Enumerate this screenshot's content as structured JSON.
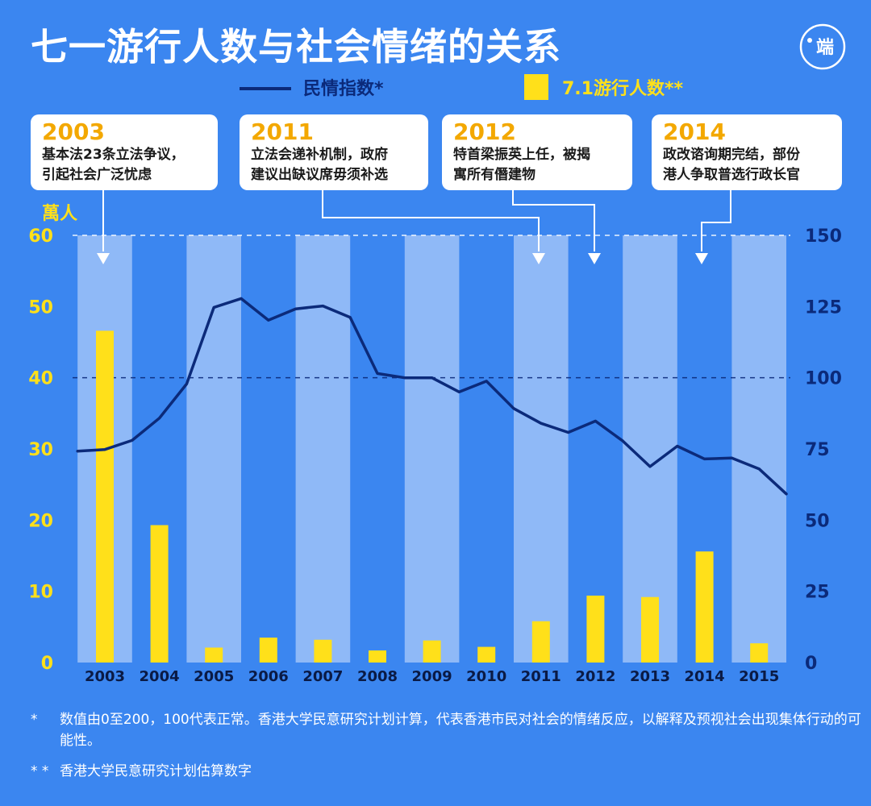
{
  "title": "七一游行人数与社会情绪的关系",
  "logo_text": "端",
  "legend": {
    "line_label": "民情指数*",
    "bar_label": "7.1游行人数**"
  },
  "callouts": [
    {
      "year": "2003",
      "lines": [
        "基本法23条立法争议，",
        "引起社会广泛忧虑"
      ]
    },
    {
      "year": "2011",
      "lines": [
        "立法会递补机制，政府",
        "建议出缺议席毋须补选"
      ]
    },
    {
      "year": "2012",
      "lines": [
        "特首梁振英上任，被揭",
        "寓所有僭建物"
      ]
    },
    {
      "year": "2014",
      "lines": [
        "政改谘询期完结，部份",
        "港人争取普选行政长官"
      ]
    }
  ],
  "footnotes": [
    {
      "mark": "*",
      "text": "数值由0至200，100代表正常。香港大学民意研究计划计算，代表香港市民对社会的情绪反应，以解释及预视社会出现集体行动的可能性。"
    },
    {
      "mark": "* *",
      "text": "香港大学民意研究计划估算数字"
    }
  ],
  "colors": {
    "background": "#3b86f0",
    "band": "#8fb9f7",
    "bar": "#ffe01a",
    "line": "#0b2a7a",
    "left_axis": "#ffe01a",
    "right_axis": "#0b2a7a",
    "callout_year": "#f3a800"
  },
  "chart_data": {
    "type": "bar+line",
    "categories": [
      "2003",
      "2004",
      "2005",
      "2006",
      "2007",
      "2008",
      "2009",
      "2010",
      "2011",
      "2012",
      "2013",
      "2014",
      "2015"
    ],
    "y_left": {
      "label": "萬人",
      "range": [
        0,
        60
      ],
      "ticks": [
        0,
        10,
        20,
        30,
        40,
        50,
        60
      ]
    },
    "y_right": {
      "label": "",
      "range": [
        0,
        150
      ],
      "ticks": [
        0,
        25,
        50,
        75,
        100,
        125,
        150
      ]
    },
    "bars": {
      "name": "7.1游行人数**",
      "axis": "left",
      "values": [
        46.6,
        19.3,
        2.1,
        3.5,
        3.2,
        1.7,
        3.1,
        2.2,
        5.8,
        9.4,
        9.2,
        15.6,
        2.7
      ]
    },
    "line": {
      "name": "民情指数*",
      "axis": "right",
      "points": [
        [
          2002.5,
          74.2
        ],
        [
          2003,
          74.8
        ],
        [
          2003.5,
          78.0
        ],
        [
          2004,
          85.8
        ],
        [
          2004.5,
          97.8
        ],
        [
          2005,
          124.7
        ],
        [
          2005.5,
          127.8
        ],
        [
          2006,
          120.2
        ],
        [
          2006.5,
          124.2
        ],
        [
          2007,
          125.2
        ],
        [
          2007.5,
          121.2
        ],
        [
          2008,
          101.5
        ],
        [
          2008.5,
          100.0
        ],
        [
          2009,
          100.0
        ],
        [
          2009.5,
          95.0
        ],
        [
          2010,
          98.8
        ],
        [
          2010.5,
          89.2
        ],
        [
          2011,
          84.0
        ],
        [
          2011.5,
          80.8
        ],
        [
          2012,
          84.8
        ],
        [
          2012.5,
          77.8
        ],
        [
          2013,
          68.8
        ],
        [
          2013.5,
          76.0
        ],
        [
          2014,
          71.5
        ],
        [
          2014.5,
          71.8
        ],
        [
          2015,
          68.0
        ],
        [
          2015.5,
          59.2
        ]
      ]
    },
    "callout_arrows": [
      "2003",
      "2011",
      "2012",
      "2014"
    ],
    "grid": {
      "dashed_reference_lines": [
        60,
        40
      ]
    }
  }
}
